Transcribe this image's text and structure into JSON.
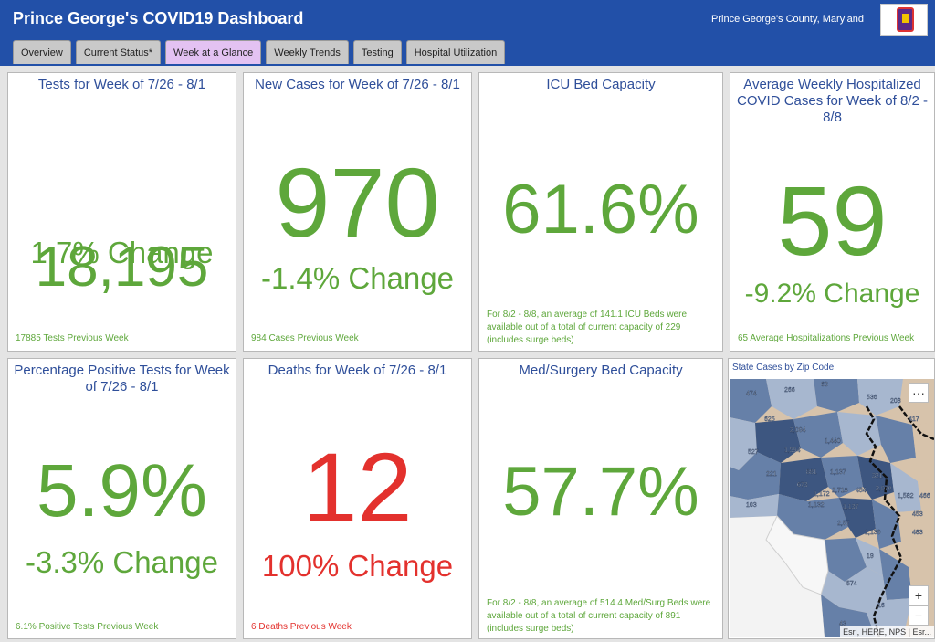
{
  "header": {
    "title": "Prince George's COVID19 Dashboard",
    "county": "Prince George's County, Maryland"
  },
  "tabs": [
    {
      "label": "Overview"
    },
    {
      "label": "Current Status*"
    },
    {
      "label": "Week at a Glance",
      "active": true
    },
    {
      "label": "Weekly Trends"
    },
    {
      "label": "Testing"
    },
    {
      "label": "Hospital Utilization"
    }
  ],
  "cards": {
    "tests": {
      "title": "Tests for Week of 7/26 - 8/1",
      "value": "18,195",
      "change": "1.7% Change",
      "footer": "17885 Tests Previous Week"
    },
    "cases": {
      "title": "New Cases for Week of 7/26 - 8/1",
      "value": "970",
      "change": "-1.4% Change",
      "footer": "984 Cases Previous Week"
    },
    "icu": {
      "title": "ICU Bed Capacity",
      "value": "61.6%",
      "footer": "For 8/2 - 8/8, an average of 141.1 ICU Beds were available out of a total of current capacity of 229 (includes surge beds)"
    },
    "hosp": {
      "title": "Average Weekly Hospitalized COVID Cases for Week of 8/2 - 8/8",
      "value": "59",
      "change": "-9.2% Change",
      "footer": "65 Average Hospitalizations Previous Week"
    },
    "positive": {
      "title": "Percentage Positive Tests for Week of 7/26 - 8/1",
      "value": "5.9%",
      "change": "-3.3% Change",
      "footer": "6.1% Positive Tests Previous Week"
    },
    "deaths": {
      "title": "Deaths for Week of 7/26 - 8/1",
      "value": "12",
      "change": "100% Change",
      "footer": "6 Deaths Previous Week"
    },
    "medsurg": {
      "title": "Med/Surgery Bed Capacity",
      "value": "57.7%",
      "footer": "For 8/2 - 8/8, an average of 514.4 Med/Surg Beds were available out of a total of current capacity of 891 (includes surge beds)"
    }
  },
  "map": {
    "title": "State Cases by Zip Code",
    "attribution": "Esri, HERE, NPS | Esr...",
    "more_label": "···",
    "zoom_in": "+",
    "zoom_out": "−",
    "zip_labels": [
      "474",
      "266",
      "63",
      "536",
      "208",
      "417",
      "625",
      "2,094",
      "1,440",
      "1,594",
      "527",
      "221",
      "881",
      "1,137",
      "321",
      "673",
      "1,172",
      "2,718",
      "454",
      "2,070",
      "1,132",
      "1,137",
      "103",
      "1,582",
      "466",
      "453",
      "483",
      "2,57",
      "1,139",
      "19",
      "574",
      "16",
      "43"
    ],
    "colors": {
      "dark": "#3d5680",
      "mid": "#6680a8",
      "light": "#a7b7cf",
      "tan": "#d7c3ab",
      "grey": "#f3f3f3"
    }
  },
  "colors": {
    "header": "#2250a8",
    "green": "#5ea73b",
    "red": "#e3312d",
    "title_blue": "#2f4f9a",
    "active_tab": "#e3c2f2"
  }
}
